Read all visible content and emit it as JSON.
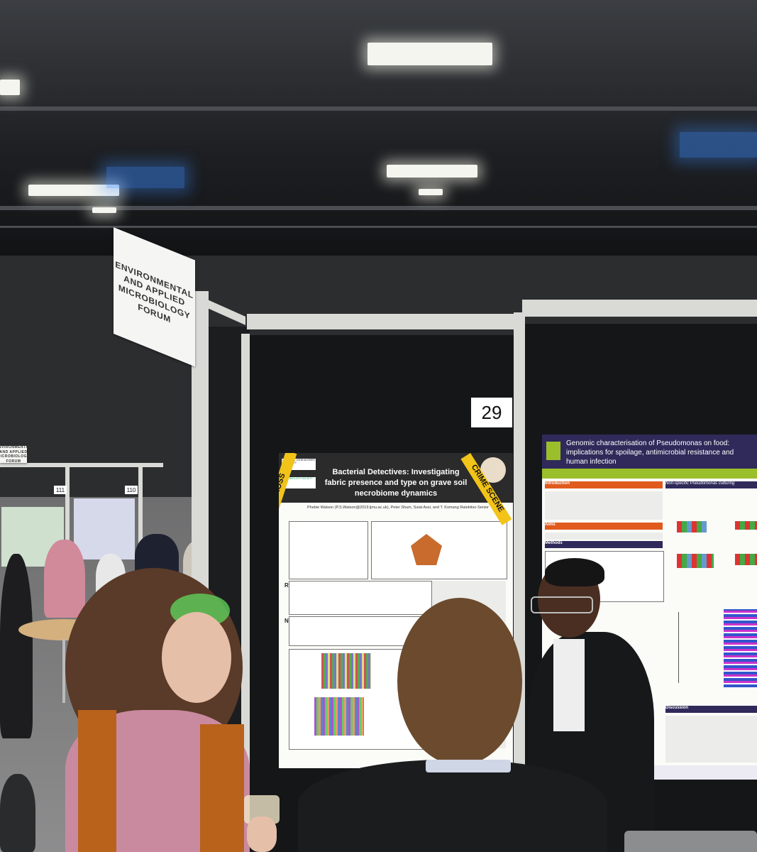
{
  "signs": {
    "forum_main": "ENVIRONMENTAL AND APPLIED MICROBIOLOGY FORUM",
    "forum_left": "ENVIRONMENTAL AND APPLIED MICROBIOLOGY FORUM",
    "board_number": "29",
    "board_111": "111",
    "board_110": "110"
  },
  "poster_left": {
    "title": "Bacterial Detectives: Investigating fabric presence and type on grave soil necrobiome dynamics",
    "authors": "Phebie Watson (P.S.Watson@2019.ljmu.ac.uk), Peter Shum, Suiat Assi, and T. Komang Ralebitso-Senior",
    "section_rflp": "RFLP",
    "section_ngs": "NGS",
    "tape_text": "NOT CROSS",
    "tape_text_2": "CRIME SCENE",
    "logo_1": "LIVERPOOL JOHN MOORES UNIVERSITY",
    "logo_2": "MICROBIOLOGY SOCIETY"
  },
  "poster_right": {
    "title": "Genomic characterisation of Pseudomonas on food: implications for spoilage, antimicrobial resistance and human infection",
    "section_intro": "Introduction",
    "section_aims": "Aims",
    "section_methods": "Methods",
    "section_culturing": "Non-specific Pseudomonas culturing",
    "section_discussion": "Discussion",
    "colors": {
      "header_bg": "#2f2a5a",
      "bar_green": "#9bbf2a",
      "accent_red": "#e05a1d"
    }
  }
}
